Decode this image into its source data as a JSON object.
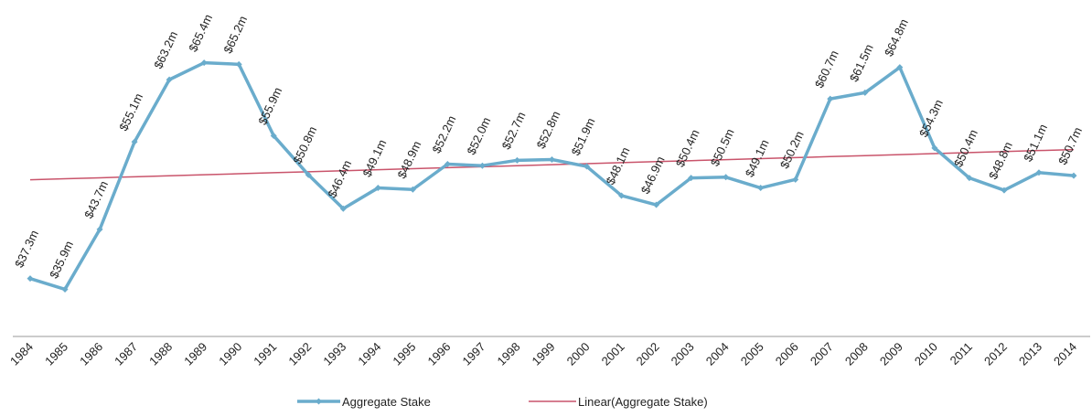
{
  "chart_data": {
    "type": "line",
    "categories": [
      "1984",
      "1985",
      "1986",
      "1987",
      "1988",
      "1989",
      "1990",
      "1991",
      "1992",
      "1993",
      "1994",
      "1995",
      "1996",
      "1997",
      "1998",
      "1999",
      "2000",
      "2001",
      "2002",
      "2003",
      "2004",
      "2005",
      "2006",
      "2007",
      "2008",
      "2009",
      "2010",
      "2011",
      "2012",
      "2013",
      "2014"
    ],
    "series": [
      {
        "name": "Aggregate Stake",
        "color": "#6aaccc",
        "values": [
          37.3,
          35.9,
          43.7,
          55.1,
          63.2,
          65.4,
          65.2,
          55.9,
          50.8,
          46.4,
          49.1,
          48.9,
          52.2,
          52.0,
          52.7,
          52.8,
          51.9,
          48.1,
          46.9,
          50.4,
          50.5,
          49.1,
          50.2,
          60.7,
          61.5,
          64.8,
          54.3,
          50.4,
          48.8,
          51.1,
          50.7
        ],
        "value_labels": [
          "$37.3m",
          "$35.9m",
          "$43.7m",
          "$55.1m",
          "$63.2m",
          "$65.4m",
          "$65.2m",
          "$55.9m",
          "$50.8m",
          "$46.4m",
          "$49.1m",
          "$48.9m",
          "$52.2m",
          "$52.0m",
          "$52.7m",
          "$52.8m",
          "$51.9m",
          "$48.1m",
          "$46.9m",
          "$50.4m",
          "$50.5m",
          "$49.1m",
          "$50.2m",
          "$60.7m",
          "$61.5m",
          "$64.8m",
          "$54.3m",
          "$50.4m",
          "$48.8m",
          "$51.1m",
          "$50.7m"
        ]
      }
    ],
    "trendline": {
      "name": "Linear(Aggregate Stake)",
      "color": "#c9546b"
    },
    "ylim": [
      30,
      70
    ]
  }
}
